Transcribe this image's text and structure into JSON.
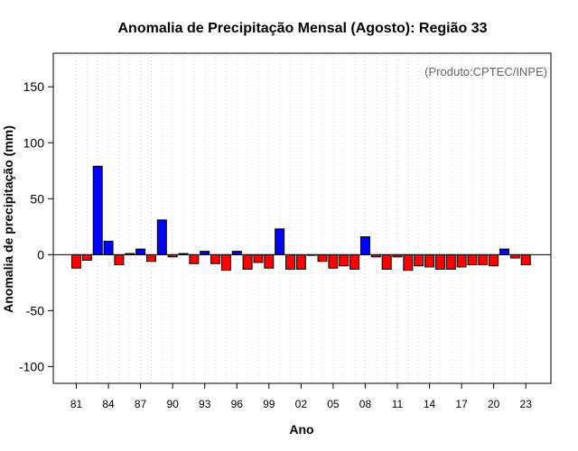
{
  "chart_data": {
    "type": "bar",
    "title": "Anomalia de Precipitação Mensal (Agosto): Região 33",
    "annotation": "(Produto:CPTEC/INPE)",
    "xlabel": "Ano",
    "ylabel": "Anomalia de precipitação (mm)",
    "ylim": [
      -115,
      180
    ],
    "yticks": [
      -100,
      -50,
      0,
      50,
      100,
      150
    ],
    "xtick_labels": [
      "81",
      "84",
      "87",
      "90",
      "93",
      "96",
      "99",
      "02",
      "05",
      "08",
      "11",
      "14",
      "17",
      "20",
      "23"
    ],
    "grid": "vertical dotted",
    "positive_color": "#0000ff",
    "negative_color": "#ff0000",
    "categories": [
      "1981",
      "1982",
      "1983",
      "1984",
      "1985",
      "1986",
      "1987",
      "1988",
      "1989",
      "1990",
      "1991",
      "1992",
      "1993",
      "1994",
      "1995",
      "1996",
      "1997",
      "1998",
      "1999",
      "2000",
      "2001",
      "2002",
      "2003",
      "2004",
      "2005",
      "2006",
      "2007",
      "2008",
      "2009",
      "2010",
      "2011",
      "2012",
      "2013",
      "2014",
      "2015",
      "2016",
      "2017",
      "2018",
      "2019",
      "2020",
      "2021",
      "2022",
      "2023"
    ],
    "values": [
      -12,
      -5,
      79,
      12,
      -9,
      1,
      5,
      -6,
      31,
      -2,
      1,
      -8,
      3,
      -8,
      -14,
      3,
      -13,
      -7,
      -12,
      23,
      -13,
      -13,
      0,
      -6,
      -12,
      -10,
      -13,
      16,
      -2,
      -13,
      -2,
      -14,
      -10,
      -11,
      -13,
      -13,
      -11,
      -9,
      -9,
      -10,
      5,
      -3,
      -9
    ]
  }
}
